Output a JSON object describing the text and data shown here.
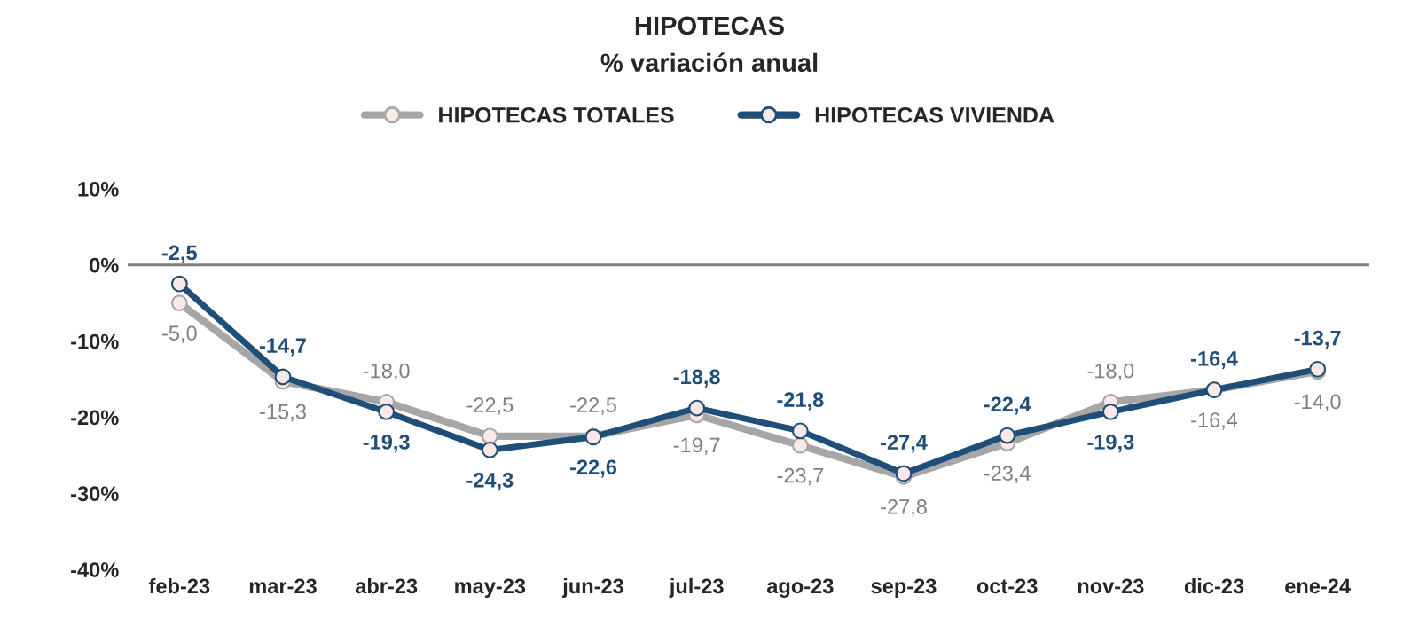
{
  "chart_data": {
    "type": "line",
    "title": "HIPOTECAS",
    "subtitle": "% variación anual",
    "categories": [
      "feb-23",
      "mar-23",
      "abr-23",
      "may-23",
      "jun-23",
      "jul-23",
      "ago-23",
      "sep-23",
      "oct-23",
      "nov-23",
      "dic-23",
      "ene-24"
    ],
    "series": [
      {
        "name": "HIPOTECAS TOTALES",
        "color": "#a6a6a6",
        "values": [
          -5.0,
          -15.3,
          -18.0,
          -22.5,
          -22.5,
          -19.7,
          -23.7,
          -27.8,
          -23.4,
          -18.0,
          -16.4,
          -14.0
        ],
        "value_labels": [
          "-5,0",
          "-15,3",
          "-18,0",
          "-22,5",
          "-22,5",
          "-19,7",
          "-23,7",
          "-27,8",
          "-23,4",
          "-18,0",
          "-16,4",
          "-14,0"
        ]
      },
      {
        "name": "HIPOTECAS VIVIENDA",
        "color": "#1f4e79",
        "values": [
          -2.5,
          -14.7,
          -19.3,
          -24.3,
          -22.6,
          -18.8,
          -21.8,
          -27.4,
          -22.4,
          -19.3,
          -16.4,
          -13.7
        ],
        "value_labels": [
          "-2,5",
          "-14,7",
          "-19,3",
          "-24,3",
          "-22,6",
          "-18,8",
          "-21,8",
          "-27,4",
          "-22,4",
          "-19,3",
          "-16,4",
          "-13,7"
        ]
      }
    ],
    "ylim": [
      -40,
      10
    ],
    "yticks": [
      {
        "value": 10,
        "label": "10%"
      },
      {
        "value": 0,
        "label": "0%"
      },
      {
        "value": -10,
        "label": "-10%"
      },
      {
        "value": -20,
        "label": "-20%"
      },
      {
        "value": -30,
        "label": "-30%"
      },
      {
        "value": -40,
        "label": "-40%"
      }
    ],
    "ref_lines": [
      {
        "axis": "y",
        "value": 0,
        "color": "#808080"
      }
    ],
    "grid": false,
    "legend": "top",
    "marker": "circle",
    "line_style": "solid"
  }
}
